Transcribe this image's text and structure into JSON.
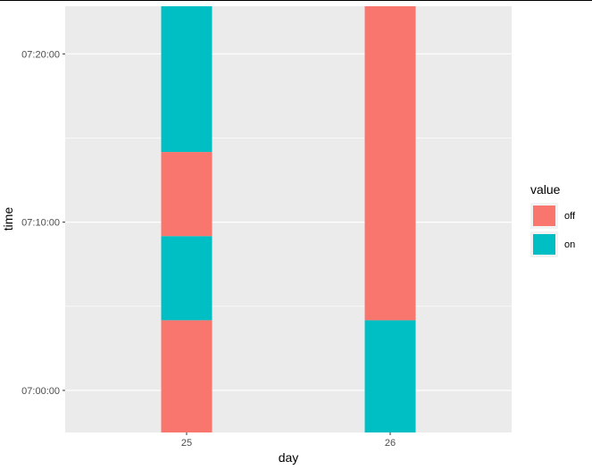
{
  "chart_data": {
    "type": "bar",
    "stacked": true,
    "orientation": "vertical",
    "title": "",
    "xlabel": "day",
    "ylabel": "time",
    "categories": [
      "25",
      "26"
    ],
    "y_ticks": [
      "07:00:00",
      "07:10:00",
      "07:20:00"
    ],
    "y_tick_values_min": [
      0,
      10,
      20
    ],
    "ylim": [
      "06:57:30",
      "07:22:50"
    ],
    "ylim_min": [
      -2.5,
      22.83
    ],
    "grid": true,
    "background": "#EBEBEB",
    "legend": {
      "title": "value",
      "position": "right",
      "entries": [
        {
          "label": "off",
          "color": "#F8766D"
        },
        {
          "label": "on",
          "color": "#00BFC4"
        }
      ]
    },
    "bars": [
      {
        "category": "25",
        "segments": [
          {
            "value": "off",
            "start": "06:57:30",
            "end": "07:04:10",
            "start_min": -2.5,
            "end_min": 4.17
          },
          {
            "value": "on",
            "start": "07:04:10",
            "end": "07:09:10",
            "start_min": 4.17,
            "end_min": 9.17
          },
          {
            "value": "off",
            "start": "07:09:10",
            "end": "07:14:10",
            "start_min": 9.17,
            "end_min": 14.17
          },
          {
            "value": "on",
            "start": "07:14:10",
            "end": "07:22:50",
            "start_min": 14.17,
            "end_min": 22.83
          }
        ]
      },
      {
        "category": "26",
        "segments": [
          {
            "value": "on",
            "start": "06:57:30",
            "end": "07:04:10",
            "start_min": -2.5,
            "end_min": 4.17
          },
          {
            "value": "off",
            "start": "07:04:10",
            "end": "07:22:50",
            "start_min": 4.17,
            "end_min": 22.83
          }
        ]
      }
    ]
  }
}
